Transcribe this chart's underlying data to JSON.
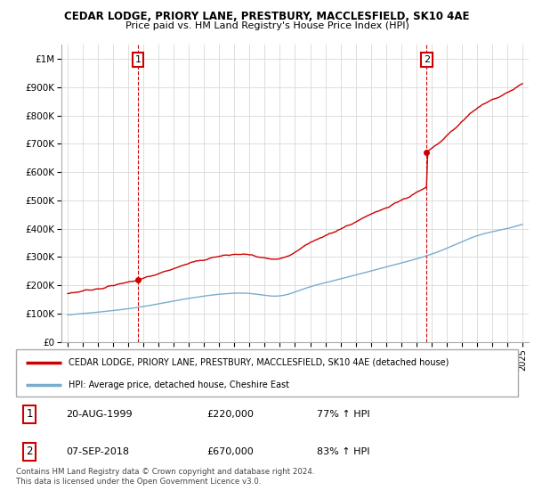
{
  "title": "CEDAR LODGE, PRIORY LANE, PRESTBURY, MACCLESFIELD, SK10 4AE",
  "subtitle": "Price paid vs. HM Land Registry's House Price Index (HPI)",
  "legend_red": "CEDAR LODGE, PRIORY LANE, PRESTBURY, MACCLESFIELD, SK10 4AE (detached house)",
  "legend_blue": "HPI: Average price, detached house, Cheshire East",
  "footnote": "Contains HM Land Registry data © Crown copyright and database right 2024.\nThis data is licensed under the Open Government Licence v3.0.",
  "sale1_date": "20-AUG-1999",
  "sale1_price": "£220,000",
  "sale1_hpi": "77% ↑ HPI",
  "sale2_date": "07-SEP-2018",
  "sale2_price": "£670,000",
  "sale2_hpi": "83% ↑ HPI",
  "red_color": "#cc0000",
  "blue_color": "#7aadcc",
  "grid_color": "#dddddd",
  "xlim": [
    1994.6,
    2025.4
  ],
  "ylim": [
    0,
    1050000
  ],
  "yticks": [
    0,
    100000,
    200000,
    300000,
    400000,
    500000,
    600000,
    700000,
    800000,
    900000,
    1000000
  ],
  "ytick_labels": [
    "£0",
    "£100K",
    "£200K",
    "£300K",
    "£400K",
    "£500K",
    "£600K",
    "£700K",
    "£800K",
    "£900K",
    "£1M"
  ],
  "xticks": [
    1995,
    1996,
    1997,
    1998,
    1999,
    2000,
    2001,
    2002,
    2003,
    2004,
    2005,
    2006,
    2007,
    2008,
    2009,
    2010,
    2011,
    2012,
    2013,
    2014,
    2015,
    2016,
    2017,
    2018,
    2019,
    2020,
    2021,
    2022,
    2023,
    2024,
    2025
  ],
  "sale1_x": 1999.64,
  "sale1_y": 220000,
  "sale2_x": 2018.68,
  "sale2_y": 670000
}
